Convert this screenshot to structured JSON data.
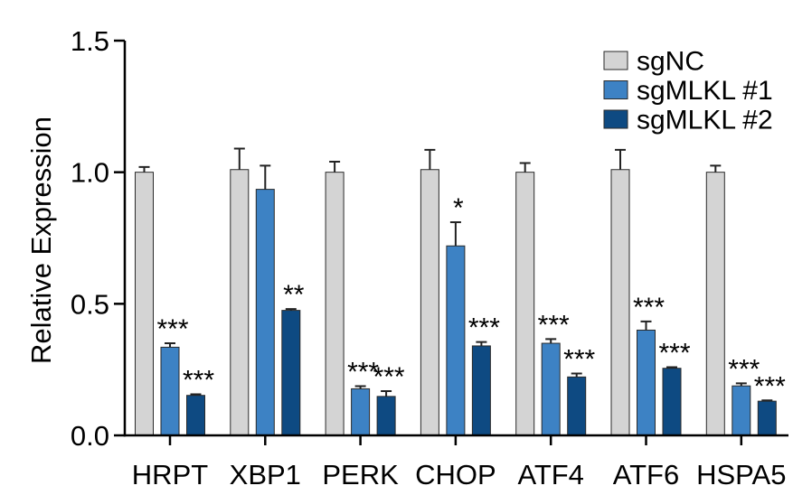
{
  "chart_data": {
    "type": "bar",
    "categories": [
      "HRPT",
      "XBP1",
      "PERK",
      "CHOP",
      "ATF4",
      "ATF6",
      "HSPA5"
    ],
    "series": [
      {
        "name": "sgNC",
        "color": "#d4d4d4",
        "values": [
          1.0,
          1.01,
          1.0,
          1.01,
          1.0,
          1.01,
          1.0
        ],
        "error": [
          0.02,
          0.08,
          0.04,
          0.075,
          0.035,
          0.075,
          0.025
        ],
        "significance": [
          "",
          "",
          "",
          "",
          "",
          "",
          ""
        ]
      },
      {
        "name": "sgMLKL #1",
        "color": "#3d82c4",
        "values": [
          0.335,
          0.935,
          0.177,
          0.72,
          0.35,
          0.4,
          0.188
        ],
        "error": [
          0.015,
          0.09,
          0.01,
          0.09,
          0.016,
          0.033,
          0.01
        ],
        "significance": [
          "***",
          "",
          "***",
          "*",
          "***",
          "***",
          "***"
        ]
      },
      {
        "name": "sgMLKL #2",
        "color": "#0e4a82",
        "values": [
          0.152,
          0.475,
          0.148,
          0.34,
          0.222,
          0.255,
          0.13
        ],
        "error": [
          0.004,
          0.005,
          0.02,
          0.015,
          0.013,
          0.004,
          0.003
        ],
        "significance": [
          "***",
          "**",
          "***",
          "***",
          "***",
          "***",
          "***"
        ]
      }
    ],
    "ylabel": "Relative Expression",
    "ylim": [
      0,
      1.5
    ],
    "ytick_labels": [
      "0.0",
      "0.5",
      "1.0",
      "1.5"
    ],
    "grid": false,
    "legend": "top-right"
  }
}
